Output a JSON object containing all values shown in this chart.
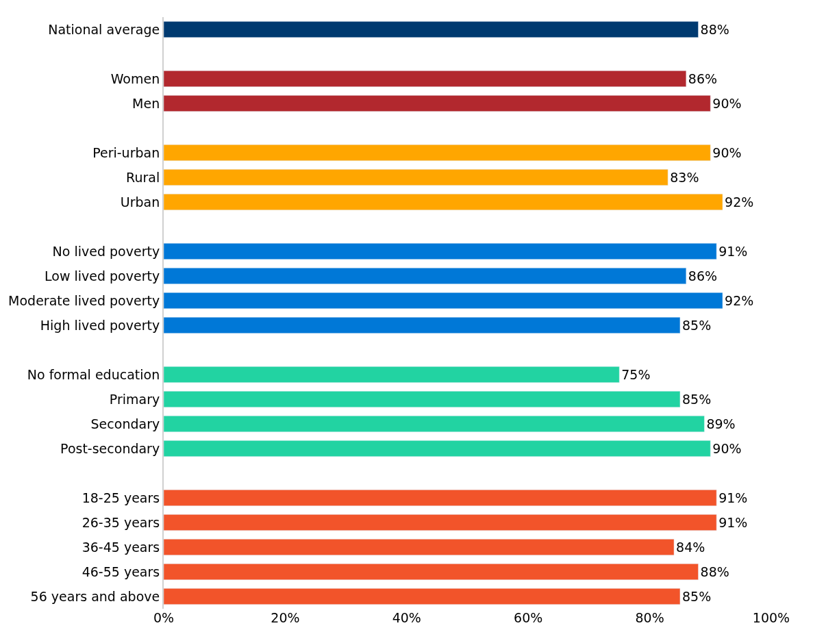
{
  "chart_data": {
    "type": "bar",
    "orientation": "horizontal",
    "categories": [
      "National average",
      null,
      "Women",
      "Men",
      null,
      "Peri-urban",
      "Rural",
      "Urban",
      null,
      "No lived poverty",
      "Low lived poverty",
      "Moderate lived poverty",
      "High lived poverty",
      null,
      "No formal education",
      "Primary",
      "Secondary",
      "Post-secondary",
      null,
      "18-25 years",
      "26-35 years",
      "36-45 years",
      "46-55 years",
      "56 years and above"
    ],
    "values": [
      88,
      null,
      86,
      90,
      null,
      90,
      83,
      92,
      null,
      91,
      86,
      92,
      85,
      null,
      75,
      85,
      89,
      90,
      null,
      91,
      91,
      84,
      88,
      85
    ],
    "value_labels": [
      "88%",
      null,
      "86%",
      "90%",
      null,
      "90%",
      "83%",
      "92%",
      null,
      "91%",
      "86%",
      "92%",
      "85%",
      null,
      "75%",
      "85%",
      "89%",
      "90%",
      null,
      "91%",
      "91%",
      "84%",
      "88%",
      "85%"
    ],
    "colors": [
      "#003a70",
      null,
      "#b2282e",
      "#b2282e",
      null,
      "#ffa600",
      "#ffa600",
      "#ffa600",
      null,
      "#0078d7",
      "#0078d7",
      "#0078d7",
      "#0078d7",
      null,
      "#22d3a2",
      "#22d3a2",
      "#22d3a2",
      "#22d3a2",
      null,
      "#f2542a",
      "#f2542a",
      "#f2542a",
      "#f2542a",
      "#f2542a"
    ],
    "xlim": [
      0,
      100
    ],
    "xticks": [
      {
        "value": 0,
        "label": "0%"
      },
      {
        "value": 20,
        "label": "20%"
      },
      {
        "value": 40,
        "label": "40%"
      },
      {
        "value": 60,
        "label": "60%"
      },
      {
        "value": 80,
        "label": "80%"
      },
      {
        "value": 100,
        "label": "100%"
      }
    ],
    "xlabel": null
  }
}
